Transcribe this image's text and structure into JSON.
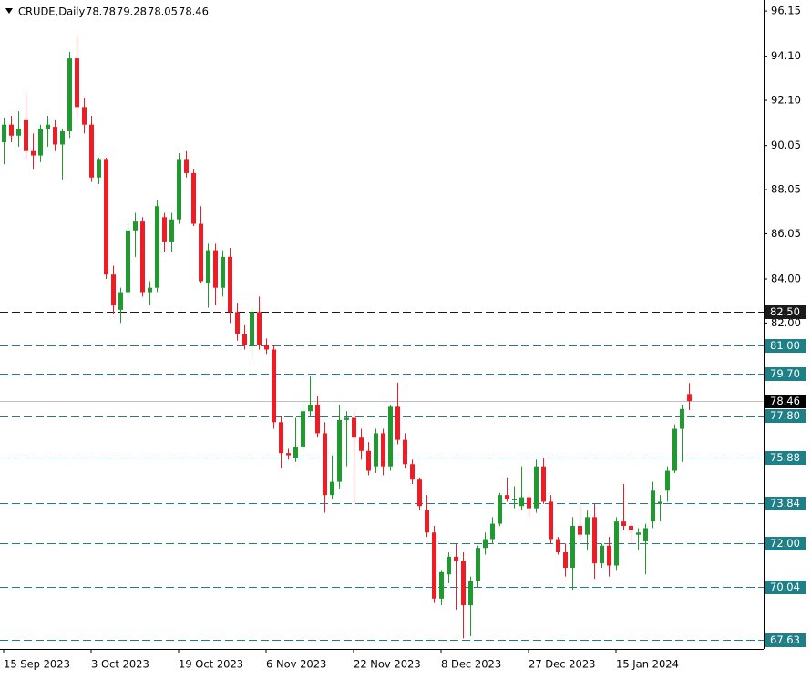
{
  "chart_data": {
    "type": "candlestick",
    "title": "CRUDE,Daily",
    "categories": [
      "15 Sep 2023",
      null,
      null,
      null,
      null,
      null,
      null,
      null,
      null,
      null,
      null,
      null,
      "3 Oct 2023",
      null,
      null,
      null,
      null,
      null,
      null,
      null,
      null,
      null,
      null,
      null,
      "19 Oct 2023",
      null,
      null,
      null,
      null,
      null,
      null,
      null,
      null,
      null,
      null,
      null,
      "6 Nov 2023",
      null,
      null,
      null,
      null,
      null,
      null,
      null,
      null,
      null,
      null,
      null,
      "22 Nov 2023",
      null,
      null,
      null,
      null,
      null,
      null,
      null,
      null,
      null,
      null,
      null,
      "8 Dec 2023",
      null,
      null,
      null,
      null,
      null,
      null,
      null,
      null,
      null,
      null,
      null,
      "27 Dec 2023",
      null,
      null,
      null,
      null,
      null,
      null,
      null,
      null,
      null,
      null,
      null,
      "15 Jan 2024",
      null,
      null,
      null,
      null,
      null,
      null,
      null,
      null,
      null,
      null
    ],
    "open": [
      90.2,
      91.0,
      90.5,
      91.2,
      89.8,
      89.6,
      90.8,
      90.9,
      90.1,
      90.7,
      94.0,
      91.8,
      91.0,
      88.6,
      89.4,
      84.2,
      82.6,
      83.4,
      86.2,
      86.6,
      83.4,
      83.6,
      86.8,
      85.7,
      86.7,
      89.4,
      88.8,
      86.5,
      83.8,
      85.3,
      83.6,
      85.0,
      82.5,
      81.5,
      81.0,
      82.5,
      81.0,
      80.8,
      77.5,
      76.1,
      75.9,
      76.4,
      78.0,
      78.3,
      77.0,
      74.2,
      74.8,
      77.6,
      77.7,
      76.8,
      76.2,
      75.5,
      77.0,
      75.5,
      78.2,
      76.7,
      75.6,
      74.9,
      73.5,
      72.5,
      69.5,
      70.6,
      71.4,
      71.2,
      69.2,
      70.3,
      71.8,
      72.2,
      72.9,
      74.2,
      74.0,
      73.7,
      74.1,
      73.6,
      75.5,
      73.9,
      72.2,
      71.6,
      70.9,
      72.8,
      72.4,
      73.2,
      71.1,
      71.9,
      71.0,
      73.0,
      72.8,
      72.4,
      72.1,
      73.0,
      73.8,
      74.4,
      75.3,
      77.2,
      78.78
    ],
    "high": [
      91.3,
      91.4,
      91.6,
      92.4,
      90.6,
      91.0,
      91.4,
      91.2,
      90.8,
      94.3,
      95.0,
      92.2,
      91.4,
      89.5,
      89.5,
      84.6,
      83.6,
      86.6,
      87.0,
      86.8,
      83.9,
      87.6,
      87.0,
      87.0,
      89.7,
      89.8,
      89.0,
      87.3,
      85.6,
      85.6,
      85.3,
      85.4,
      82.9,
      81.9,
      82.7,
      83.2,
      81.3,
      81.0,
      77.8,
      76.3,
      77.7,
      78.4,
      79.6,
      78.7,
      77.5,
      76.0,
      78.3,
      78.0,
      78.0,
      77.2,
      76.6,
      77.2,
      77.2,
      78.3,
      79.3,
      77.0,
      75.8,
      75.0,
      74.2,
      72.8,
      70.8,
      71.6,
      72.0,
      71.6,
      70.5,
      71.9,
      72.5,
      73.2,
      74.3,
      75.0,
      74.6,
      75.5,
      74.2,
      75.8,
      75.9,
      74.2,
      72.3,
      72.0,
      73.2,
      73.7,
      73.5,
      73.8,
      72.0,
      72.3,
      73.2,
      74.7,
      73.0,
      72.7,
      72.9,
      74.8,
      74.2,
      75.5,
      77.4,
      78.3,
      79.28
    ],
    "low": [
      89.2,
      90.2,
      90.0,
      89.4,
      89.0,
      89.3,
      90.0,
      89.8,
      88.5,
      90.4,
      91.3,
      90.6,
      88.4,
      88.3,
      84.0,
      82.4,
      82.0,
      83.2,
      85.0,
      83.2,
      82.8,
      83.4,
      85.2,
      85.2,
      86.5,
      88.6,
      86.4,
      83.8,
      82.7,
      82.8,
      83.2,
      82.0,
      81.2,
      80.8,
      80.4,
      80.8,
      80.6,
      77.2,
      75.4,
      75.8,
      75.7,
      76.2,
      77.8,
      76.8,
      73.4,
      74.0,
      74.5,
      75.5,
      73.7,
      75.8,
      75.1,
      75.2,
      75.1,
      75.3,
      76.5,
      75.4,
      74.7,
      73.5,
      72.3,
      69.3,
      69.2,
      70.2,
      69.0,
      67.7,
      67.8,
      70.0,
      71.5,
      72.0,
      72.8,
      73.9,
      73.6,
      73.5,
      73.2,
      73.4,
      73.8,
      72.0,
      71.5,
      70.5,
      69.9,
      72.1,
      71.7,
      70.4,
      70.9,
      70.5,
      70.8,
      72.6,
      72.0,
      71.7,
      70.6,
      72.7,
      73.0,
      73.9,
      75.2,
      75.7,
      78.05
    ],
    "close": [
      91.0,
      90.5,
      90.8,
      89.8,
      89.6,
      90.8,
      91.0,
      90.1,
      90.7,
      94.0,
      91.8,
      91.0,
      88.6,
      89.4,
      84.2,
      82.8,
      83.4,
      86.2,
      86.6,
      83.4,
      83.6,
      87.3,
      85.7,
      86.7,
      89.4,
      88.8,
      86.5,
      83.9,
      85.3,
      83.6,
      85.0,
      82.5,
      81.5,
      81.0,
      82.5,
      81.0,
      80.8,
      77.5,
      76.1,
      76.0,
      76.4,
      78.0,
      78.3,
      77.0,
      74.2,
      74.8,
      77.6,
      77.7,
      76.8,
      76.2,
      75.3,
      77.0,
      75.5,
      78.2,
      76.7,
      75.6,
      74.9,
      73.7,
      72.5,
      69.5,
      70.7,
      71.4,
      71.2,
      69.2,
      70.3,
      71.8,
      72.2,
      72.9,
      74.2,
      74.0,
      74.0,
      74.1,
      73.6,
      75.5,
      73.9,
      72.2,
      71.6,
      70.9,
      72.8,
      72.4,
      73.2,
      71.1,
      71.9,
      71.0,
      73.0,
      72.8,
      72.6,
      72.5,
      72.7,
      74.4,
      73.9,
      75.3,
      77.2,
      78.1,
      78.46
    ],
    "up_color": "#1f9a2e",
    "down_color": "#ee1c25",
    "ylim": [
      67.22,
      96.65
    ],
    "yticks": [
      96.15,
      {
        "value": 94.1,
        "label": "94.10"
      },
      {
        "value": 92.1,
        "label": "92.10"
      },
      90.05,
      88.05,
      86.05,
      {
        "value": 84.0,
        "label": "84.00"
      },
      {
        "value": 82.0,
        "label": "82.00"
      }
    ],
    "levels": [
      {
        "value": 82.5,
        "label": "82.50",
        "color": "#1a1a1a"
      },
      {
        "value": 81.0,
        "label": "81.00",
        "color": "#1f7f86"
      },
      {
        "value": 79.7,
        "label": "79.70",
        "color": "#1f7f86"
      },
      {
        "value": 77.8,
        "label": "77.80",
        "color": "#1f7f86"
      },
      {
        "value": 75.88,
        "label": "75.88",
        "color": "#1f7f86"
      },
      {
        "value": 73.84,
        "label": "73.84",
        "color": "#1f7f86"
      },
      {
        "value": 72.0,
        "label": "72.00",
        "color": "#1f7f86"
      },
      {
        "value": 70.04,
        "label": "70.04",
        "color": "#1f7f86"
      },
      {
        "value": 67.63,
        "label": "67.63",
        "color": "#1f7f86"
      }
    ]
  }
}
